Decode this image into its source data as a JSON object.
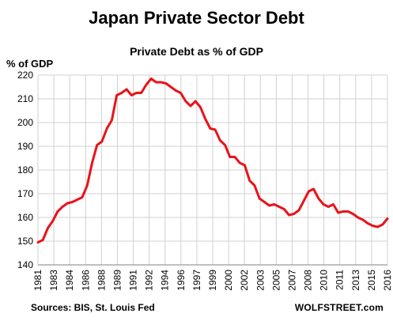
{
  "chart_data": {
    "type": "line",
    "title": "Japan Private Sector Debt",
    "subtitle": "Private Debt as % of GDP",
    "ylabel": "% of GDP",
    "xlabel": "",
    "ylim": [
      140,
      220
    ],
    "yticks": [
      140,
      150,
      160,
      170,
      180,
      190,
      200,
      210,
      220
    ],
    "xticks": [
      "1981",
      "1983",
      "1984",
      "1986",
      "1988",
      "1989",
      "1991",
      "1992",
      "1994",
      "1996",
      "1997",
      "1999",
      "2000",
      "2002",
      "2003",
      "2005",
      "2007",
      "2008",
      "2010",
      "2011",
      "2013",
      "2015",
      "2016"
    ],
    "grid": true,
    "line_color": "#e8141a",
    "series": [
      {
        "name": "",
        "x": [
          1981.0,
          1981.5,
          1982.0,
          1982.5,
          1983.0,
          1983.5,
          1984.0,
          1984.5,
          1985.0,
          1985.5,
          1986.0,
          1986.5,
          1987.0,
          1987.5,
          1988.0,
          1988.5,
          1989.0,
          1989.5,
          1990.0,
          1990.5,
          1991.0,
          1991.5,
          1992.0,
          1992.5,
          1993.0,
          1993.5,
          1994.0,
          1994.5,
          1995.0,
          1995.5,
          1996.0,
          1996.5,
          1997.0,
          1997.5,
          1998.0,
          1998.5,
          1999.0,
          1999.5,
          2000.0,
          2000.5,
          2001.0,
          2001.5,
          2002.0,
          2002.5,
          2003.0,
          2003.5,
          2004.0,
          2004.5,
          2005.0,
          2005.5,
          2006.0,
          2006.5,
          2007.0,
          2007.5,
          2008.0,
          2008.5,
          2009.0,
          2009.5,
          2010.0,
          2010.5,
          2011.0,
          2011.5,
          2012.0,
          2012.5,
          2013.0,
          2013.5,
          2014.0,
          2014.5,
          2015.0,
          2015.5,
          2016.0,
          2016.5
        ],
        "values": [
          149.5,
          150.5,
          155.5,
          158.5,
          162.5,
          164.5,
          166.0,
          166.5,
          167.5,
          168.5,
          173.5,
          183.0,
          190.5,
          192.0,
          197.5,
          201.0,
          211.5,
          212.5,
          214.0,
          211.5,
          212.5,
          212.5,
          216.0,
          218.5,
          217.0,
          217.0,
          216.5,
          215.0,
          213.5,
          212.5,
          209.0,
          207.0,
          209.0,
          206.5,
          201.5,
          197.5,
          197.0,
          192.5,
          190.5,
          185.5,
          185.5,
          183.0,
          182.0,
          175.5,
          173.5,
          168.0,
          166.5,
          165.0,
          165.5,
          164.5,
          163.5,
          161.0,
          161.5,
          163.0,
          167.0,
          171.0,
          172.0,
          168.0,
          165.5,
          164.5,
          165.5,
          162.0,
          162.5,
          162.5,
          161.5,
          160.0,
          159.0,
          157.5,
          156.5,
          156.0,
          157.0,
          159.5
        ]
      }
    ]
  },
  "footer": {
    "source": "Sources: BIS, St. Louis Fed",
    "brand": "WOLFSTREET.com"
  }
}
